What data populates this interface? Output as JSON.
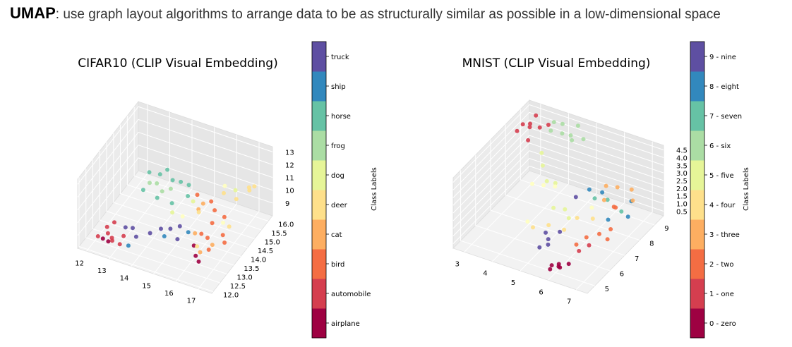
{
  "header": {
    "keyword": "UMAP",
    "text": ": use graph layout algorithms to arrange data to be as structurally similar as possible in a low-dimensional space"
  },
  "chart_data": [
    {
      "type": "scatter",
      "title": "CIFAR10 (CLIP Visual Embedding)",
      "colorbar_label": "Class Labels",
      "classes": [
        "airplane",
        "automobile",
        "bird",
        "cat",
        "deer",
        "dog",
        "frog",
        "horse",
        "ship",
        "truck"
      ],
      "colors": [
        "#9e0142",
        "#d53e4f",
        "#f46d43",
        "#fdae61",
        "#fee08b",
        "#ffffbf",
        "#e6f598",
        "#abdda4",
        "#66c2a5",
        "#3288bd",
        "#5e4fa2"
      ],
      "x_ticks": [
        "12",
        "13",
        "14",
        "15",
        "16",
        "17"
      ],
      "y_ticks": [
        "12.0",
        "12.5",
        "13.0",
        "13.5",
        "14.0",
        "14.5",
        "15.0",
        "15.5",
        "16.0"
      ],
      "z_ticks": [
        "9",
        "10",
        "11",
        "12",
        "13"
      ],
      "xlim": [
        11.6,
        17.6
      ],
      "ylim": [
        11.9,
        16.3
      ],
      "zlim": [
        8.0,
        13.4
      ],
      "points": [
        {
          "x": 12.2,
          "y": 12.4,
          "z": 8.6,
          "c": 1
        },
        {
          "x": 12.4,
          "y": 12.8,
          "z": 8.4,
          "c": 1
        },
        {
          "x": 12.9,
          "y": 12.3,
          "z": 8.8,
          "c": 1
        },
        {
          "x": 12.5,
          "y": 13.1,
          "z": 8.9,
          "c": 1
        },
        {
          "x": 12.7,
          "y": 12.6,
          "z": 8.5,
          "c": 1
        },
        {
          "x": 12.3,
          "y": 12.9,
          "z": 8.7,
          "c": 1
        },
        {
          "x": 13.1,
          "y": 12.8,
          "z": 8.6,
          "c": 1
        },
        {
          "x": 13.3,
          "y": 12.2,
          "z": 8.9,
          "c": 1
        },
        {
          "x": 12.6,
          "y": 12.5,
          "z": 8.3,
          "c": 0
        },
        {
          "x": 12.3,
          "y": 12.6,
          "z": 8.2,
          "c": 0
        },
        {
          "x": 16.0,
          "y": 13.2,
          "z": 9.0,
          "c": 0
        },
        {
          "x": 16.2,
          "y": 13.0,
          "z": 8.6,
          "c": 0
        },
        {
          "x": 16.4,
          "y": 12.9,
          "z": 8.4,
          "c": 0
        },
        {
          "x": 13.0,
          "y": 13.1,
          "z": 8.8,
          "c": 10
        },
        {
          "x": 13.2,
          "y": 13.3,
          "z": 8.6,
          "c": 10
        },
        {
          "x": 13.6,
          "y": 12.9,
          "z": 8.7,
          "c": 10
        },
        {
          "x": 14.1,
          "y": 13.1,
          "z": 9.0,
          "c": 10
        },
        {
          "x": 14.4,
          "y": 13.4,
          "z": 9.1,
          "c": 10
        },
        {
          "x": 14.7,
          "y": 13.6,
          "z": 9.0,
          "c": 10
        },
        {
          "x": 15.0,
          "y": 13.8,
          "z": 9.1,
          "c": 10
        },
        {
          "x": 15.2,
          "y": 13.3,
          "z": 8.9,
          "c": 10
        },
        {
          "x": 13.5,
          "y": 12.5,
          "z": 8.5,
          "c": 9
        },
        {
          "x": 14.8,
          "y": 13.0,
          "z": 9.3,
          "c": 9
        },
        {
          "x": 15.5,
          "y": 13.6,
          "z": 9.2,
          "c": 9
        },
        {
          "x": 15.1,
          "y": 14.9,
          "z": 10.1,
          "c": 2
        },
        {
          "x": 15.6,
          "y": 15.1,
          "z": 9.6,
          "c": 2
        },
        {
          "x": 16.0,
          "y": 14.7,
          "z": 9.7,
          "c": 2
        },
        {
          "x": 16.2,
          "y": 14.2,
          "z": 9.5,
          "c": 2
        },
        {
          "x": 16.5,
          "y": 14.6,
          "z": 9.6,
          "c": 2
        },
        {
          "x": 16.8,
          "y": 14.0,
          "z": 9.2,
          "c": 2
        },
        {
          "x": 16.3,
          "y": 13.7,
          "z": 9.1,
          "c": 2
        },
        {
          "x": 15.9,
          "y": 13.9,
          "z": 8.9,
          "c": 2
        },
        {
          "x": 16.6,
          "y": 13.3,
          "z": 8.9,
          "c": 2
        },
        {
          "x": 17.0,
          "y": 13.8,
          "z": 9.0,
          "c": 2
        },
        {
          "x": 15.4,
          "y": 14.5,
          "z": 9.7,
          "c": 3
        },
        {
          "x": 15.8,
          "y": 13.6,
          "z": 9.3,
          "c": 3
        },
        {
          "x": 16.4,
          "y": 13.0,
          "z": 9.0,
          "c": 3
        },
        {
          "x": 16.7,
          "y": 13.4,
          "z": 9.2,
          "c": 3
        },
        {
          "x": 15.3,
          "y": 15.0,
          "z": 9.4,
          "c": 3
        },
        {
          "x": 15.6,
          "y": 14.2,
          "z": 10.0,
          "c": 4
        },
        {
          "x": 16.1,
          "y": 15.2,
          "z": 10.4,
          "c": 4
        },
        {
          "x": 16.9,
          "y": 14.3,
          "z": 9.5,
          "c": 4
        },
        {
          "x": 16.2,
          "y": 13.1,
          "z": 9.2,
          "c": 4
        },
        {
          "x": 17.0,
          "y": 15.6,
          "z": 10.6,
          "c": 4
        },
        {
          "x": 17.1,
          "y": 15.8,
          "z": 10.7,
          "c": 4
        },
        {
          "x": 16.8,
          "y": 15.9,
          "z": 10.3,
          "c": 4
        },
        {
          "x": 16.6,
          "y": 15.3,
          "z": 10.1,
          "c": 4
        },
        {
          "x": 15.0,
          "y": 14.0,
          "z": 9.6,
          "c": 5
        },
        {
          "x": 16.5,
          "y": 14.5,
          "z": 9.3,
          "c": 5
        },
        {
          "x": 15.9,
          "y": 15.6,
          "z": 10.3,
          "c": 5
        },
        {
          "x": 14.6,
          "y": 13.9,
          "z": 9.8,
          "c": 6
        },
        {
          "x": 15.1,
          "y": 14.6,
          "z": 10.0,
          "c": 6
        },
        {
          "x": 16.5,
          "y": 15.4,
          "z": 10.6,
          "c": 6
        },
        {
          "x": 13.4,
          "y": 14.2,
          "z": 11.0,
          "c": 7
        },
        {
          "x": 13.6,
          "y": 14.4,
          "z": 10.8,
          "c": 7
        },
        {
          "x": 13.9,
          "y": 14.3,
          "z": 10.5,
          "c": 7
        },
        {
          "x": 14.1,
          "y": 14.6,
          "z": 10.4,
          "c": 7
        },
        {
          "x": 13.2,
          "y": 14.5,
          "z": 11.3,
          "c": 8
        },
        {
          "x": 13.5,
          "y": 14.8,
          "z": 10.9,
          "c": 8
        },
        {
          "x": 13.8,
          "y": 14.1,
          "z": 10.2,
          "c": 8
        },
        {
          "x": 14.0,
          "y": 14.9,
          "z": 10.6,
          "c": 8
        },
        {
          "x": 14.3,
          "y": 15.0,
          "z": 10.5,
          "c": 8
        },
        {
          "x": 14.6,
          "y": 15.1,
          "z": 10.3,
          "c": 8
        },
        {
          "x": 13.3,
          "y": 13.9,
          "z": 10.8,
          "c": 8
        },
        {
          "x": 14.4,
          "y": 14.2,
          "z": 10.0,
          "c": 8
        },
        {
          "x": 14.8,
          "y": 14.7,
          "z": 10.1,
          "c": 8
        },
        {
          "x": 13.7,
          "y": 15.0,
          "z": 11.1,
          "c": 8
        }
      ]
    },
    {
      "type": "scatter",
      "title": "MNIST (CLIP Visual Embedding)",
      "colorbar_label": "Class Labels",
      "classes": [
        "0 - zero",
        "1 - one",
        "2 - two",
        "3 - three",
        "4 - four",
        "5 - five",
        "6 - six",
        "7 - seven",
        "8 - eight",
        "9 - nine"
      ],
      "colors": [
        "#9e0142",
        "#d53e4f",
        "#f46d43",
        "#fdae61",
        "#fee08b",
        "#ffffbf",
        "#e6f598",
        "#abdda4",
        "#66c2a5",
        "#3288bd",
        "#5e4fa2"
      ],
      "x_ticks": [
        "3",
        "4",
        "5",
        "6",
        "7"
      ],
      "y_ticks": [
        "5",
        "6",
        "7",
        "8",
        "9"
      ],
      "z_ticks": [
        "0.5",
        "1.0",
        "1.5",
        "2.0",
        "2.5",
        "3.0",
        "3.5",
        "4.0",
        "4.5"
      ],
      "xlim": [
        2.6,
        7.4
      ],
      "ylim": [
        4.5,
        9.6
      ],
      "zlim": [
        0.2,
        4.8
      ],
      "points": [
        {
          "x": 5.8,
          "y": 5.0,
          "z": 0.3,
          "c": 0
        },
        {
          "x": 6.0,
          "y": 5.2,
          "z": 0.4,
          "c": 0
        },
        {
          "x": 5.9,
          "y": 5.4,
          "z": 0.3,
          "c": 0
        },
        {
          "x": 6.1,
          "y": 5.1,
          "z": 0.5,
          "c": 0
        },
        {
          "x": 5.7,
          "y": 5.3,
          "z": 0.2,
          "c": 0
        },
        {
          "x": 6.2,
          "y": 5.5,
          "z": 0.4,
          "c": 0
        },
        {
          "x": 2.9,
          "y": 8.6,
          "z": 4.4,
          "c": 1
        },
        {
          "x": 3.0,
          "y": 8.9,
          "z": 4.2,
          "c": 1
        },
        {
          "x": 3.2,
          "y": 8.5,
          "z": 4.5,
          "c": 1
        },
        {
          "x": 3.4,
          "y": 8.8,
          "z": 4.3,
          "c": 1
        },
        {
          "x": 3.1,
          "y": 9.1,
          "z": 4.6,
          "c": 1
        },
        {
          "x": 3.6,
          "y": 9.0,
          "z": 4.4,
          "c": 1
        },
        {
          "x": 2.8,
          "y": 8.4,
          "z": 4.1,
          "c": 1
        },
        {
          "x": 3.3,
          "y": 8.2,
          "z": 4.0,
          "c": 1
        },
        {
          "x": 6.3,
          "y": 6.0,
          "z": 0.8,
          "c": 1
        },
        {
          "x": 6.5,
          "y": 6.3,
          "z": 1.0,
          "c": 1
        },
        {
          "x": 6.3,
          "y": 6.5,
          "z": 1.2,
          "c": 2
        },
        {
          "x": 6.6,
          "y": 6.8,
          "z": 1.3,
          "c": 2
        },
        {
          "x": 6.9,
          "y": 7.0,
          "z": 1.6,
          "c": 2
        },
        {
          "x": 7.0,
          "y": 6.6,
          "z": 1.4,
          "c": 2
        },
        {
          "x": 6.1,
          "y": 6.2,
          "z": 0.9,
          "c": 2
        },
        {
          "x": 6.8,
          "y": 7.4,
          "z": 2.6,
          "c": 2
        },
        {
          "x": 6.7,
          "y": 7.7,
          "z": 2.2,
          "c": 2
        },
        {
          "x": 6.5,
          "y": 8.2,
          "z": 2.9,
          "c": 3
        },
        {
          "x": 6.2,
          "y": 8.0,
          "z": 3.0,
          "c": 3
        },
        {
          "x": 6.9,
          "y": 8.4,
          "z": 2.8,
          "c": 3
        },
        {
          "x": 7.1,
          "y": 8.1,
          "z": 2.5,
          "c": 3
        },
        {
          "x": 6.4,
          "y": 7.5,
          "z": 2.7,
          "c": 3
        },
        {
          "x": 5.5,
          "y": 6.5,
          "z": 1.2,
          "c": 4
        },
        {
          "x": 4.6,
          "y": 6.1,
          "z": 1.2,
          "c": 4
        },
        {
          "x": 5.0,
          "y": 6.4,
          "z": 1.3,
          "c": 4
        },
        {
          "x": 5.7,
          "y": 7.0,
          "z": 1.6,
          "c": 4
        },
        {
          "x": 6.1,
          "y": 7.3,
          "z": 1.5,
          "c": 4
        },
        {
          "x": 4.5,
          "y": 7.0,
          "z": 3.0,
          "c": 5
        },
        {
          "x": 4.8,
          "y": 7.2,
          "z": 2.9,
          "c": 5
        },
        {
          "x": 4.2,
          "y": 6.8,
          "z": 3.1,
          "c": 5
        },
        {
          "x": 5.9,
          "y": 7.6,
          "z": 1.8,
          "c": 5
        },
        {
          "x": 4.3,
          "y": 6.3,
          "z": 1.2,
          "c": 5
        },
        {
          "x": 4.0,
          "y": 7.8,
          "z": 4.0,
          "c": 6
        },
        {
          "x": 4.2,
          "y": 7.5,
          "z": 3.6,
          "c": 6
        },
        {
          "x": 4.4,
          "y": 7.4,
          "z": 2.8,
          "c": 6
        },
        {
          "x": 4.6,
          "y": 7.6,
          "z": 2.6,
          "c": 6
        },
        {
          "x": 4.8,
          "y": 7.1,
          "z": 1.6,
          "c": 6
        },
        {
          "x": 5.1,
          "y": 7.3,
          "z": 1.5,
          "c": 6
        },
        {
          "x": 5.4,
          "y": 7.0,
          "z": 1.4,
          "c": 6
        },
        {
          "x": 3.8,
          "y": 9.0,
          "z": 4.7,
          "c": 7
        },
        {
          "x": 4.0,
          "y": 9.2,
          "z": 4.5,
          "c": 7
        },
        {
          "x": 4.2,
          "y": 8.8,
          "z": 4.4,
          "c": 7
        },
        {
          "x": 4.4,
          "y": 9.0,
          "z": 4.2,
          "c": 7
        },
        {
          "x": 4.6,
          "y": 8.7,
          "z": 4.3,
          "c": 7
        },
        {
          "x": 4.8,
          "y": 9.1,
          "z": 4.1,
          "c": 7
        },
        {
          "x": 3.9,
          "y": 8.6,
          "z": 4.6,
          "c": 7
        },
        {
          "x": 4.5,
          "y": 9.3,
          "z": 4.6,
          "c": 7
        },
        {
          "x": 5.9,
          "y": 7.8,
          "z": 2.2,
          "c": 8
        },
        {
          "x": 6.2,
          "y": 8.1,
          "z": 2.0,
          "c": 8
        },
        {
          "x": 6.8,
          "y": 7.9,
          "z": 1.8,
          "c": 8
        },
        {
          "x": 5.6,
          "y": 8.0,
          "z": 2.4,
          "c": 9
        },
        {
          "x": 5.9,
          "y": 8.3,
          "z": 2.1,
          "c": 9
        },
        {
          "x": 7.0,
          "y": 8.2,
          "z": 2.3,
          "c": 9
        },
        {
          "x": 6.7,
          "y": 7.2,
          "z": 1.9,
          "c": 9
        },
        {
          "x": 7.2,
          "y": 7.6,
          "z": 2.0,
          "c": 9
        },
        {
          "x": 5.0,
          "y": 6.2,
          "z": 1.0,
          "c": 10
        },
        {
          "x": 5.2,
          "y": 6.0,
          "z": 0.9,
          "c": 10
        },
        {
          "x": 5.4,
          "y": 6.4,
          "z": 1.1,
          "c": 10
        },
        {
          "x": 5.3,
          "y": 5.8,
          "z": 0.8,
          "c": 10
        },
        {
          "x": 5.1,
          "y": 5.6,
          "z": 0.7,
          "c": 10
        },
        {
          "x": 5.6,
          "y": 7.1,
          "z": 2.8,
          "c": 10
        }
      ]
    }
  ]
}
